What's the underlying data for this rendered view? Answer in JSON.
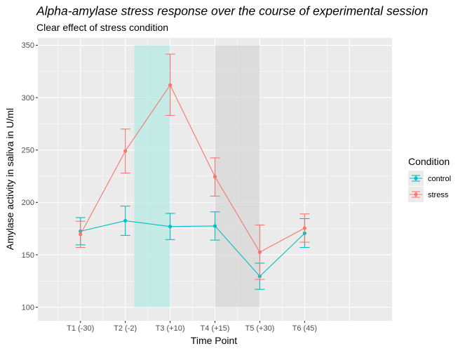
{
  "chart_data": {
    "type": "line",
    "title": "Alpha-amylase stress response over the course of experimental session",
    "subtitle": "Clear effect of stress condition",
    "xlabel": "Time Point",
    "ylabel": "Amylase activity in saliva in U/ml",
    "categories": [
      "T1 (-30)",
      "T2 (-2)",
      "T3 (+10)",
      "T4 (+15)",
      "T5 (+30)",
      "T6 (45)"
    ],
    "y_ticks": [
      100,
      150,
      200,
      250,
      300,
      350
    ],
    "ylim": [
      87,
      357
    ],
    "xlim": [
      -0.95,
      6.95
    ],
    "grid": true,
    "legend": {
      "title": "Condition",
      "position": "right"
    },
    "shaded_regions": [
      {
        "x_start": 1.2,
        "x_end": 2.0,
        "y_start": 100,
        "y_end": 350,
        "color": "#b3e9e4"
      },
      {
        "x_start": 3.0,
        "x_end": 4.0,
        "y_start": 100,
        "y_end": 350,
        "color": "#d6d6d6"
      }
    ],
    "series": [
      {
        "name": "control",
        "color": "#00bfc4",
        "values": [
          172.5,
          182.5,
          177,
          177.5,
          129.5,
          170.5
        ],
        "error_low": [
          159.5,
          168.5,
          164.5,
          164,
          117,
          157
        ],
        "error_high": [
          185.5,
          196.5,
          189.5,
          191,
          142,
          184.5
        ]
      },
      {
        "name": "stress",
        "color": "#f8766d",
        "values": [
          169.5,
          249,
          312,
          224.5,
          152.5,
          175.5
        ],
        "error_low": [
          157,
          228,
          283,
          206,
          126.5,
          162
        ],
        "error_high": [
          182,
          270,
          341.5,
          242.5,
          178.5,
          189
        ]
      }
    ]
  }
}
